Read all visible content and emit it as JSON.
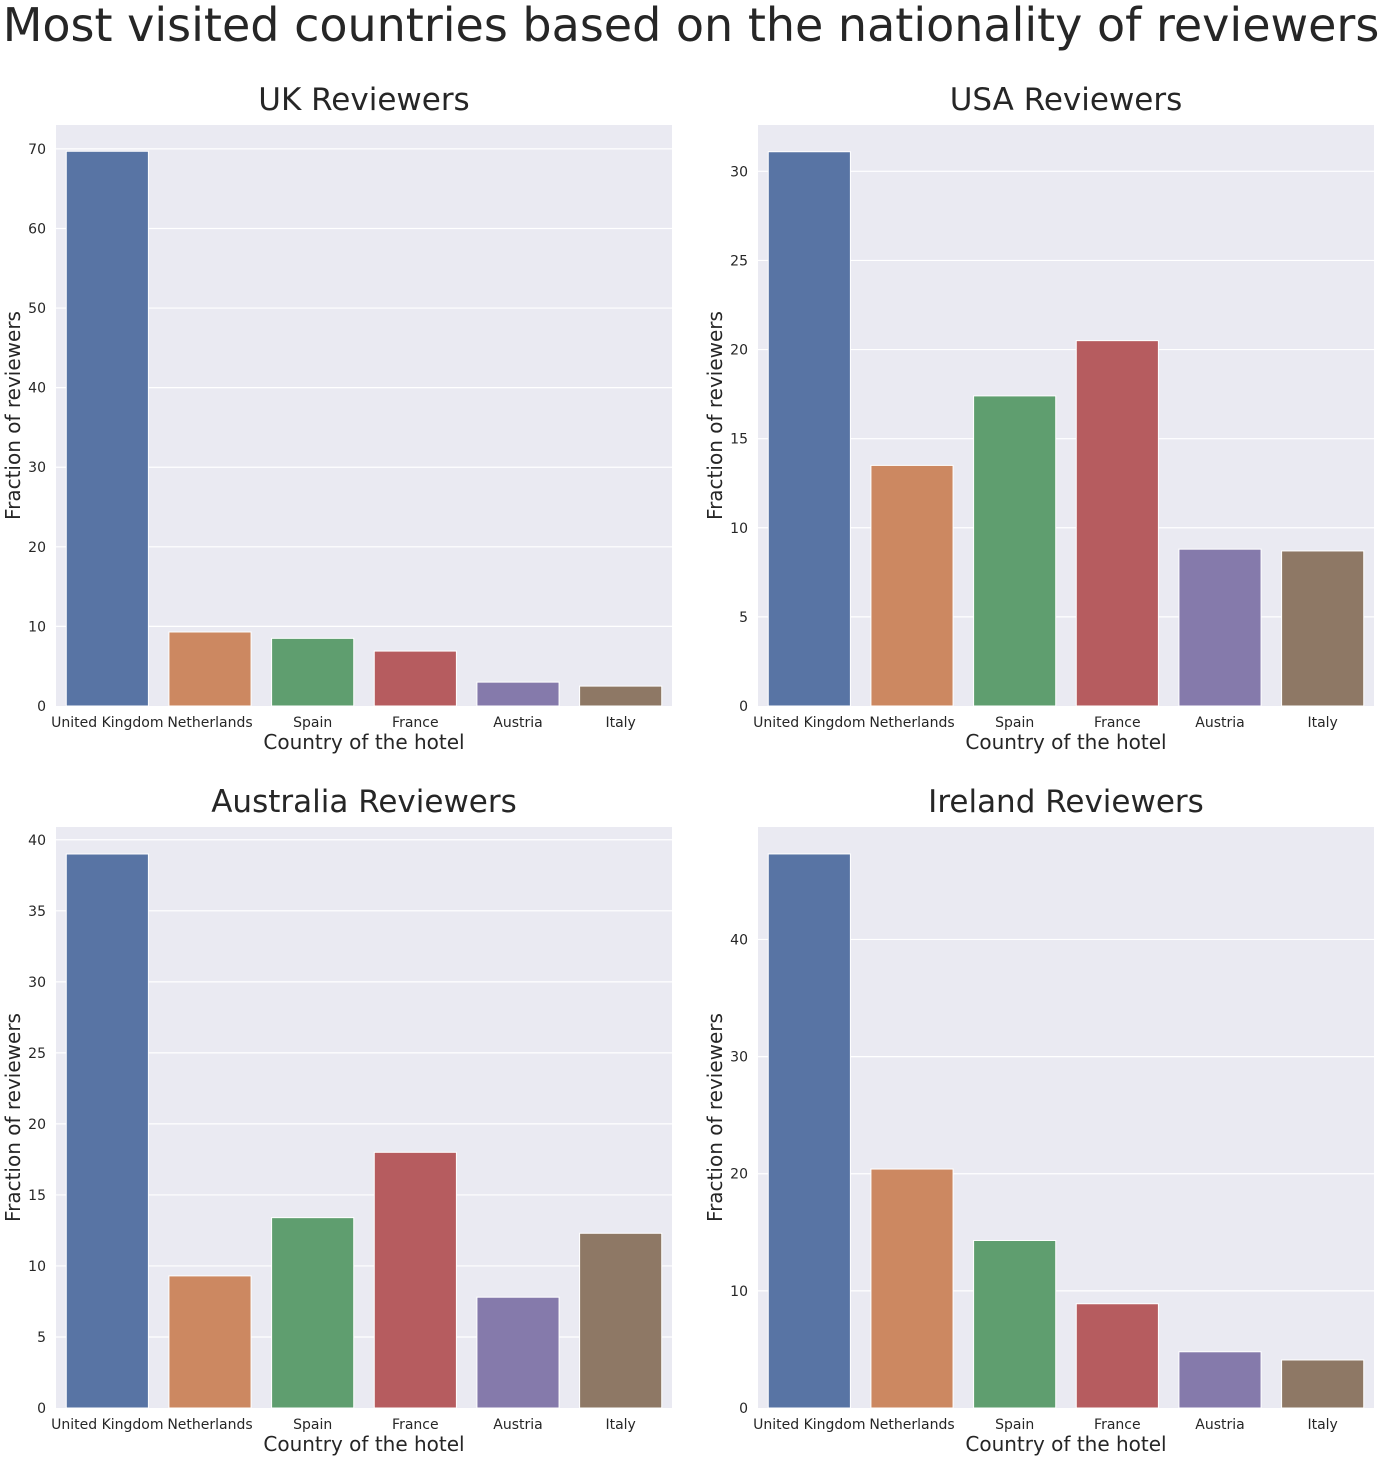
{
  "title": "Most visited countries based on the nationality of reviewers",
  "colors": {
    "plot_background": "#EAEAF2",
    "grid": "#FFFFFF",
    "bars": [
      "#5874A4",
      "#CC8861",
      "#5F9E6F",
      "#B65C5F",
      "#857AAB",
      "#8E7865"
    ]
  },
  "chart_data": [
    {
      "type": "bar",
      "title": "UK Reviewers",
      "xlabel": "Country of the hotel",
      "ylabel": "Fraction of reviewers",
      "categories": [
        "United Kingdom",
        "Netherlands",
        "Spain",
        "France",
        "Austria",
        "Italy"
      ],
      "values": [
        69.7,
        9.3,
        8.5,
        6.9,
        3.0,
        2.5
      ],
      "ylim": [
        0,
        73
      ],
      "yticks": [
        0,
        10,
        20,
        30,
        40,
        50,
        60,
        70
      ],
      "grid": true
    },
    {
      "type": "bar",
      "title": "USA Reviewers",
      "xlabel": "Country of the hotel",
      "ylabel": "Fraction of reviewers",
      "categories": [
        "United Kingdom",
        "Netherlands",
        "Spain",
        "France",
        "Austria",
        "Italy"
      ],
      "values": [
        31.1,
        13.5,
        17.4,
        20.5,
        8.8,
        8.7
      ],
      "ylim": [
        0,
        32.6
      ],
      "yticks": [
        0,
        5,
        10,
        15,
        20,
        25,
        30
      ],
      "grid": true
    },
    {
      "type": "bar",
      "title": "Australia Reviewers",
      "xlabel": "Country of the hotel",
      "ylabel": "Fraction of reviewers",
      "categories": [
        "United Kingdom",
        "Netherlands",
        "Spain",
        "France",
        "Austria",
        "Italy"
      ],
      "values": [
        39.0,
        9.3,
        13.4,
        18.0,
        7.8,
        12.3
      ],
      "ylim": [
        0,
        40.9
      ],
      "yticks": [
        0,
        5,
        10,
        15,
        20,
        25,
        30,
        35,
        40
      ],
      "grid": true
    },
    {
      "type": "bar",
      "title": "Ireland Reviewers",
      "xlabel": "Country of the hotel",
      "ylabel": "Fraction of reviewers",
      "categories": [
        "United Kingdom",
        "Netherlands",
        "Spain",
        "France",
        "Austria",
        "Italy"
      ],
      "values": [
        47.3,
        20.4,
        14.3,
        8.9,
        4.8,
        4.1
      ],
      "ylim": [
        0,
        49.6
      ],
      "yticks": [
        0,
        10,
        20,
        30,
        40
      ],
      "grid": true
    }
  ]
}
